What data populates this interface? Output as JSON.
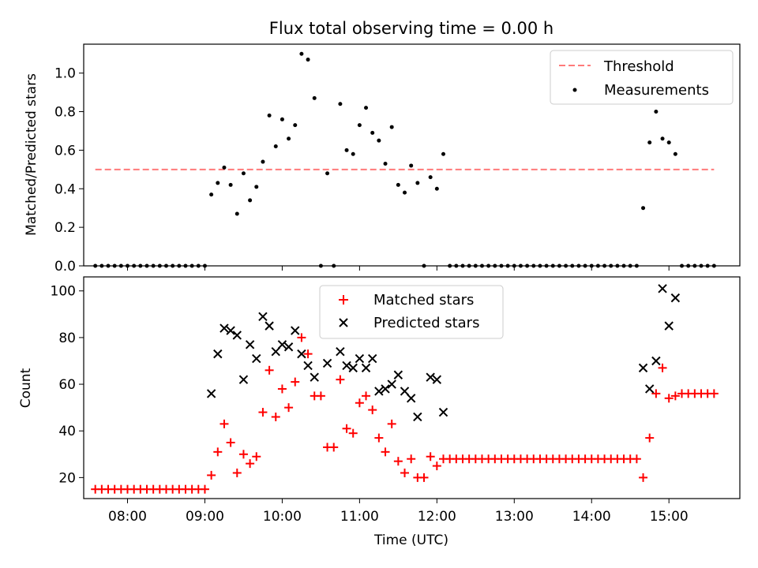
{
  "title": "Flux total observing time = 0.00 h",
  "xlabel": "Time (UTC)",
  "chart_data": [
    {
      "type": "scatter",
      "ylabel": "Matched/Predicted stars",
      "xlim": [
        "07:26",
        "15:55"
      ],
      "ylim": [
        0,
        1.15
      ],
      "yticks": [
        "0.0",
        "0.2",
        "0.4",
        "0.6",
        "0.8",
        "1.0"
      ],
      "legend": "top-right",
      "threshold": {
        "name": "Threshold",
        "value": 0.5,
        "from": "07:35",
        "to": "15:35",
        "color": "#ff7a7a"
      },
      "series": [
        {
          "name": "Measurements",
          "color": "#000000",
          "points": [
            [
              "07:35",
              0
            ],
            [
              "07:40",
              0
            ],
            [
              "07:45",
              0
            ],
            [
              "07:50",
              0
            ],
            [
              "07:55",
              0
            ],
            [
              "08:00",
              0
            ],
            [
              "08:05",
              0
            ],
            [
              "08:10",
              0
            ],
            [
              "08:15",
              0
            ],
            [
              "08:20",
              0
            ],
            [
              "08:25",
              0
            ],
            [
              "08:30",
              0
            ],
            [
              "08:35",
              0
            ],
            [
              "08:40",
              0
            ],
            [
              "08:45",
              0
            ],
            [
              "08:50",
              0
            ],
            [
              "08:55",
              0
            ],
            [
              "09:00",
              0
            ],
            [
              "09:05",
              0.37
            ],
            [
              "09:10",
              0.43
            ],
            [
              "09:15",
              0.51
            ],
            [
              "09:20",
              0.42
            ],
            [
              "09:25",
              0.27
            ],
            [
              "09:30",
              0.48
            ],
            [
              "09:35",
              0.34
            ],
            [
              "09:40",
              0.41
            ],
            [
              "09:45",
              0.54
            ],
            [
              "09:50",
              0.78
            ],
            [
              "09:55",
              0.62
            ],
            [
              "10:00",
              0.76
            ],
            [
              "10:05",
              0.66
            ],
            [
              "10:10",
              0.73
            ],
            [
              "10:15",
              1.1
            ],
            [
              "10:20",
              1.07
            ],
            [
              "10:25",
              0.87
            ],
            [
              "10:30",
              0
            ],
            [
              "10:35",
              0.48
            ],
            [
              "10:40",
              0
            ],
            [
              "10:45",
              0.84
            ],
            [
              "10:50",
              0.6
            ],
            [
              "10:55",
              0.58
            ],
            [
              "11:00",
              0.73
            ],
            [
              "11:05",
              0.82
            ],
            [
              "11:10",
              0.69
            ],
            [
              "11:15",
              0.65
            ],
            [
              "11:20",
              0.53
            ],
            [
              "11:25",
              0.72
            ],
            [
              "11:30",
              0.42
            ],
            [
              "11:35",
              0.38
            ],
            [
              "11:40",
              0.52
            ],
            [
              "11:45",
              0.43
            ],
            [
              "11:50",
              0
            ],
            [
              "11:55",
              0.46
            ],
            [
              "12:00",
              0.4
            ],
            [
              "12:05",
              0.58
            ],
            [
              "12:10",
              0
            ],
            [
              "12:15",
              0
            ],
            [
              "12:20",
              0
            ],
            [
              "12:25",
              0
            ],
            [
              "12:30",
              0
            ],
            [
              "12:35",
              0
            ],
            [
              "12:40",
              0
            ],
            [
              "12:45",
              0
            ],
            [
              "12:50",
              0
            ],
            [
              "12:55",
              0
            ],
            [
              "13:00",
              0
            ],
            [
              "13:05",
              0
            ],
            [
              "13:10",
              0
            ],
            [
              "13:15",
              0
            ],
            [
              "13:20",
              0
            ],
            [
              "13:25",
              0
            ],
            [
              "13:30",
              0
            ],
            [
              "13:35",
              0
            ],
            [
              "13:40",
              0
            ],
            [
              "13:45",
              0
            ],
            [
              "13:50",
              0
            ],
            [
              "13:55",
              0
            ],
            [
              "14:00",
              0
            ],
            [
              "14:05",
              0
            ],
            [
              "14:10",
              0
            ],
            [
              "14:15",
              0
            ],
            [
              "14:20",
              0
            ],
            [
              "14:25",
              0
            ],
            [
              "14:30",
              0
            ],
            [
              "14:35",
              0
            ],
            [
              "14:40",
              0.3
            ],
            [
              "14:45",
              0.64
            ],
            [
              "14:50",
              0.8
            ],
            [
              "14:55",
              0.66
            ],
            [
              "15:00",
              0.64
            ],
            [
              "15:05",
              0.58
            ],
            [
              "15:10",
              0
            ],
            [
              "15:15",
              0
            ],
            [
              "15:20",
              0
            ],
            [
              "15:25",
              0
            ],
            [
              "15:30",
              0
            ],
            [
              "15:35",
              0
            ]
          ]
        }
      ]
    },
    {
      "type": "scatter",
      "ylabel": "Count",
      "xlim": [
        "07:26",
        "15:55"
      ],
      "ylim": [
        11,
        106
      ],
      "xticks": [
        "08:00",
        "09:00",
        "10:00",
        "11:00",
        "12:00",
        "13:00",
        "14:00",
        "15:00"
      ],
      "yticks": [
        "20",
        "40",
        "60",
        "80",
        "100"
      ],
      "legend": "top-center",
      "series": [
        {
          "name": "Matched stars",
          "color": "#ff0000",
          "points": [
            [
              "07:35",
              15
            ],
            [
              "07:40",
              15
            ],
            [
              "07:45",
              15
            ],
            [
              "07:50",
              15
            ],
            [
              "07:55",
              15
            ],
            [
              "08:00",
              15
            ],
            [
              "08:05",
              15
            ],
            [
              "08:10",
              15
            ],
            [
              "08:15",
              15
            ],
            [
              "08:20",
              15
            ],
            [
              "08:25",
              15
            ],
            [
              "08:30",
              15
            ],
            [
              "08:35",
              15
            ],
            [
              "08:40",
              15
            ],
            [
              "08:45",
              15
            ],
            [
              "08:50",
              15
            ],
            [
              "08:55",
              15
            ],
            [
              "09:00",
              15
            ],
            [
              "09:05",
              21
            ],
            [
              "09:10",
              31
            ],
            [
              "09:15",
              43
            ],
            [
              "09:20",
              35
            ],
            [
              "09:25",
              22
            ],
            [
              "09:30",
              30
            ],
            [
              "09:35",
              26
            ],
            [
              "09:40",
              29
            ],
            [
              "09:45",
              48
            ],
            [
              "09:50",
              66
            ],
            [
              "09:55",
              46
            ],
            [
              "10:00",
              58
            ],
            [
              "10:05",
              50
            ],
            [
              "10:10",
              61
            ],
            [
              "10:15",
              80
            ],
            [
              "10:20",
              73
            ],
            [
              "10:25",
              55
            ],
            [
              "10:30",
              55
            ],
            [
              "10:35",
              33
            ],
            [
              "10:40",
              33
            ],
            [
              "10:45",
              62
            ],
            [
              "10:50",
              41
            ],
            [
              "10:55",
              39
            ],
            [
              "11:00",
              52
            ],
            [
              "11:05",
              55
            ],
            [
              "11:10",
              49
            ],
            [
              "11:15",
              37
            ],
            [
              "11:20",
              31
            ],
            [
              "11:25",
              43
            ],
            [
              "11:30",
              27
            ],
            [
              "11:35",
              22
            ],
            [
              "11:40",
              28
            ],
            [
              "11:45",
              20
            ],
            [
              "11:50",
              20
            ],
            [
              "11:55",
              29
            ],
            [
              "12:00",
              25
            ],
            [
              "12:05",
              28
            ],
            [
              "12:10",
              28
            ],
            [
              "12:15",
              28
            ],
            [
              "12:20",
              28
            ],
            [
              "12:25",
              28
            ],
            [
              "12:30",
              28
            ],
            [
              "12:35",
              28
            ],
            [
              "12:40",
              28
            ],
            [
              "12:45",
              28
            ],
            [
              "12:50",
              28
            ],
            [
              "12:55",
              28
            ],
            [
              "13:00",
              28
            ],
            [
              "13:05",
              28
            ],
            [
              "13:10",
              28
            ],
            [
              "13:15",
              28
            ],
            [
              "13:20",
              28
            ],
            [
              "13:25",
              28
            ],
            [
              "13:30",
              28
            ],
            [
              "13:35",
              28
            ],
            [
              "13:40",
              28
            ],
            [
              "13:45",
              28
            ],
            [
              "13:50",
              28
            ],
            [
              "13:55",
              28
            ],
            [
              "14:00",
              28
            ],
            [
              "14:05",
              28
            ],
            [
              "14:10",
              28
            ],
            [
              "14:15",
              28
            ],
            [
              "14:20",
              28
            ],
            [
              "14:25",
              28
            ],
            [
              "14:30",
              28
            ],
            [
              "14:35",
              28
            ],
            [
              "14:40",
              20
            ],
            [
              "14:45",
              37
            ],
            [
              "14:50",
              56
            ],
            [
              "14:55",
              67
            ],
            [
              "15:00",
              54
            ],
            [
              "15:05",
              55
            ],
            [
              "15:10",
              56
            ],
            [
              "15:15",
              56
            ],
            [
              "15:20",
              56
            ],
            [
              "15:25",
              56
            ],
            [
              "15:30",
              56
            ],
            [
              "15:35",
              56
            ]
          ]
        },
        {
          "name": "Predicted stars",
          "color": "#000000",
          "points": [
            [
              "09:05",
              56
            ],
            [
              "09:10",
              73
            ],
            [
              "09:15",
              84
            ],
            [
              "09:20",
              83
            ],
            [
              "09:25",
              81
            ],
            [
              "09:30",
              62
            ],
            [
              "09:35",
              77
            ],
            [
              "09:40",
              71
            ],
            [
              "09:45",
              89
            ],
            [
              "09:50",
              85
            ],
            [
              "09:55",
              74
            ],
            [
              "10:00",
              77
            ],
            [
              "10:05",
              76
            ],
            [
              "10:10",
              83
            ],
            [
              "10:15",
              73
            ],
            [
              "10:20",
              68
            ],
            [
              "10:25",
              63
            ],
            [
              "10:35",
              69
            ],
            [
              "10:45",
              74
            ],
            [
              "10:50",
              68
            ],
            [
              "10:55",
              67
            ],
            [
              "11:00",
              71
            ],
            [
              "11:05",
              67
            ],
            [
              "11:10",
              71
            ],
            [
              "11:15",
              57
            ],
            [
              "11:20",
              58
            ],
            [
              "11:25",
              60
            ],
            [
              "11:30",
              64
            ],
            [
              "11:35",
              57
            ],
            [
              "11:40",
              54
            ],
            [
              "11:45",
              46
            ],
            [
              "11:55",
              63
            ],
            [
              "12:00",
              62
            ],
            [
              "12:05",
              48
            ],
            [
              "14:40",
              67
            ],
            [
              "14:45",
              58
            ],
            [
              "14:50",
              70
            ],
            [
              "14:55",
              101
            ],
            [
              "15:00",
              85
            ],
            [
              "15:05",
              97
            ]
          ]
        }
      ]
    }
  ]
}
